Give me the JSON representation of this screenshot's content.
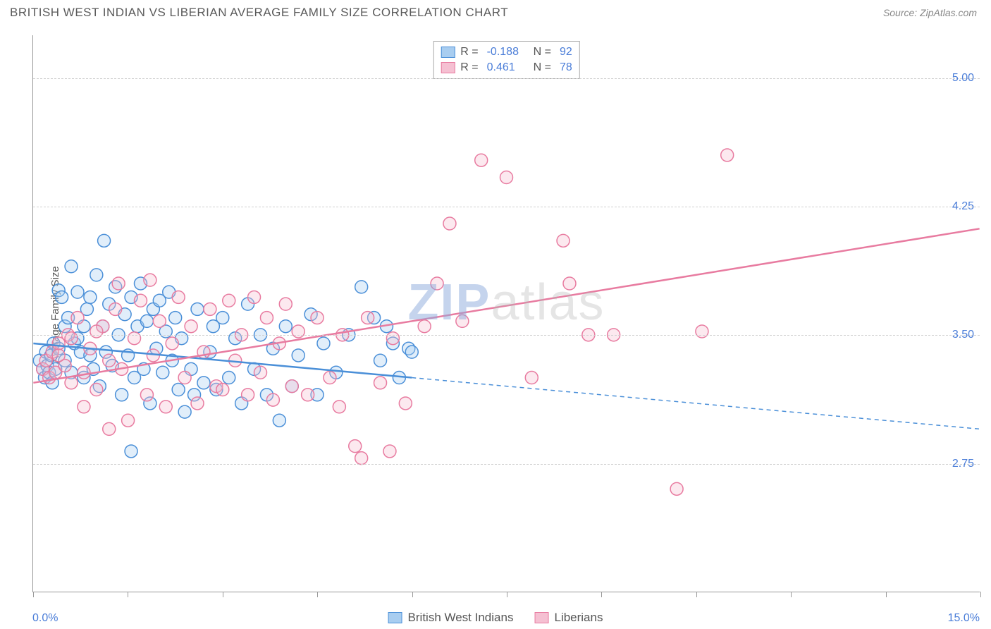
{
  "header": {
    "title": "BRITISH WEST INDIAN VS LIBERIAN AVERAGE FAMILY SIZE CORRELATION CHART",
    "source": "Source: ZipAtlas.com"
  },
  "chart": {
    "type": "scatter",
    "y_axis_title": "Average Family Size",
    "xlim": [
      0,
      15
    ],
    "ylim": [
      2.0,
      5.25
    ],
    "x_ticks": [
      0,
      1.5,
      3.0,
      4.5,
      6.0,
      7.5,
      9.0,
      10.5,
      12.0,
      13.5,
      15.0
    ],
    "x_min_label": "0.0%",
    "x_max_label": "15.0%",
    "y_gridlines": [
      2.75,
      3.5,
      4.25,
      5.0
    ],
    "y_tick_labels": [
      "2.75",
      "3.50",
      "4.25",
      "5.00"
    ],
    "grid_color": "#d0d0d0",
    "axis_color": "#999999",
    "tick_label_color": "#4a7dd8",
    "background_color": "#ffffff",
    "marker_radius": 9,
    "marker_stroke_width": 1.5,
    "marker_fill_opacity": 0.35,
    "line_width": 2.5,
    "series": [
      {
        "name": "British West Indians",
        "color_stroke": "#4a8fd8",
        "color_fill": "#a8cdf0",
        "R": "-0.188",
        "N": "92",
        "trend": {
          "x1": 0,
          "y1": 3.45,
          "x2": 15,
          "y2": 2.95,
          "solid_until_x": 6.0
        },
        "points": [
          [
            0.1,
            3.35
          ],
          [
            0.15,
            3.3
          ],
          [
            0.18,
            3.25
          ],
          [
            0.2,
            3.4
          ],
          [
            0.22,
            3.32
          ],
          [
            0.25,
            3.28
          ],
          [
            0.28,
            3.38
          ],
          [
            0.3,
            3.22
          ],
          [
            0.32,
            3.45
          ],
          [
            0.35,
            3.3
          ],
          [
            0.4,
            3.76
          ],
          [
            0.45,
            3.72
          ],
          [
            0.5,
            3.55
          ],
          [
            0.55,
            3.6
          ],
          [
            0.6,
            3.9
          ],
          [
            0.65,
            3.45
          ],
          [
            0.7,
            3.75
          ],
          [
            0.75,
            3.4
          ],
          [
            0.8,
            3.25
          ],
          [
            0.85,
            3.65
          ],
          [
            0.9,
            3.72
          ],
          [
            0.95,
            3.3
          ],
          [
            1.0,
            3.85
          ],
          [
            1.05,
            3.2
          ],
          [
            1.1,
            3.55
          ],
          [
            1.12,
            4.05
          ],
          [
            1.15,
            3.4
          ],
          [
            1.2,
            3.68
          ],
          [
            1.25,
            3.32
          ],
          [
            1.3,
            3.78
          ],
          [
            1.35,
            3.5
          ],
          [
            1.4,
            3.15
          ],
          [
            1.45,
            3.62
          ],
          [
            1.5,
            3.38
          ],
          [
            1.55,
            3.72
          ],
          [
            1.55,
            2.82
          ],
          [
            1.6,
            3.25
          ],
          [
            1.65,
            3.55
          ],
          [
            1.7,
            3.8
          ],
          [
            1.75,
            3.3
          ],
          [
            1.8,
            3.58
          ],
          [
            1.85,
            3.1
          ],
          [
            1.9,
            3.65
          ],
          [
            1.95,
            3.42
          ],
          [
            2.0,
            3.7
          ],
          [
            2.05,
            3.28
          ],
          [
            2.1,
            3.52
          ],
          [
            2.15,
            3.75
          ],
          [
            2.2,
            3.35
          ],
          [
            2.25,
            3.6
          ],
          [
            2.3,
            3.18
          ],
          [
            2.35,
            3.48
          ],
          [
            2.4,
            3.05
          ],
          [
            2.5,
            3.3
          ],
          [
            2.55,
            3.15
          ],
          [
            2.6,
            3.65
          ],
          [
            2.7,
            3.22
          ],
          [
            2.8,
            3.4
          ],
          [
            2.85,
            3.55
          ],
          [
            2.9,
            3.18
          ],
          [
            3.0,
            3.6
          ],
          [
            3.1,
            3.25
          ],
          [
            3.2,
            3.48
          ],
          [
            3.3,
            3.1
          ],
          [
            3.4,
            3.68
          ],
          [
            3.5,
            3.3
          ],
          [
            3.6,
            3.5
          ],
          [
            3.7,
            3.15
          ],
          [
            3.8,
            3.42
          ],
          [
            3.9,
            3.0
          ],
          [
            4.0,
            3.55
          ],
          [
            4.1,
            3.2
          ],
          [
            4.2,
            3.38
          ],
          [
            4.4,
            3.62
          ],
          [
            4.5,
            3.15
          ],
          [
            4.6,
            3.45
          ],
          [
            4.8,
            3.28
          ],
          [
            5.0,
            3.5
          ],
          [
            5.2,
            3.78
          ],
          [
            5.4,
            3.6
          ],
          [
            5.5,
            3.35
          ],
          [
            5.6,
            3.55
          ],
          [
            5.7,
            3.45
          ],
          [
            5.8,
            3.25
          ],
          [
            5.95,
            3.42
          ],
          [
            6.0,
            3.4
          ],
          [
            0.4,
            3.42
          ],
          [
            0.5,
            3.35
          ],
          [
            0.6,
            3.28
          ],
          [
            0.7,
            3.48
          ],
          [
            0.8,
            3.55
          ],
          [
            0.9,
            3.38
          ]
        ]
      },
      {
        "name": "Liberians",
        "color_stroke": "#e87ba0",
        "color_fill": "#f5c0d2",
        "R": "0.461",
        "N": "78",
        "trend": {
          "x1": 0,
          "y1": 3.22,
          "x2": 15,
          "y2": 4.12,
          "solid_until_x": 15
        },
        "points": [
          [
            0.15,
            3.3
          ],
          [
            0.2,
            3.35
          ],
          [
            0.25,
            3.25
          ],
          [
            0.3,
            3.4
          ],
          [
            0.35,
            3.28
          ],
          [
            0.4,
            3.45
          ],
          [
            0.5,
            3.32
          ],
          [
            0.55,
            3.5
          ],
          [
            0.6,
            3.22
          ],
          [
            0.7,
            3.6
          ],
          [
            0.8,
            3.08
          ],
          [
            0.9,
            3.42
          ],
          [
            1.0,
            3.18
          ],
          [
            1.1,
            3.55
          ],
          [
            1.2,
            2.95
          ],
          [
            1.3,
            3.65
          ],
          [
            1.35,
            3.8
          ],
          [
            1.4,
            3.3
          ],
          [
            1.5,
            3.0
          ],
          [
            1.6,
            3.48
          ],
          [
            1.7,
            3.7
          ],
          [
            1.85,
            3.82
          ],
          [
            1.8,
            3.15
          ],
          [
            1.9,
            3.38
          ],
          [
            2.0,
            3.58
          ],
          [
            2.1,
            3.08
          ],
          [
            2.2,
            3.45
          ],
          [
            2.3,
            3.72
          ],
          [
            2.4,
            3.25
          ],
          [
            2.5,
            3.55
          ],
          [
            2.6,
            3.1
          ],
          [
            2.7,
            3.4
          ],
          [
            2.8,
            3.65
          ],
          [
            2.9,
            3.2
          ],
          [
            3.0,
            3.18
          ],
          [
            3.1,
            3.7
          ],
          [
            3.2,
            3.35
          ],
          [
            3.3,
            3.5
          ],
          [
            3.4,
            3.15
          ],
          [
            3.5,
            3.72
          ],
          [
            3.6,
            3.28
          ],
          [
            3.7,
            3.6
          ],
          [
            3.8,
            3.12
          ],
          [
            3.9,
            3.45
          ],
          [
            4.0,
            3.68
          ],
          [
            4.1,
            3.2
          ],
          [
            4.2,
            3.52
          ],
          [
            4.35,
            3.15
          ],
          [
            4.5,
            3.6
          ],
          [
            4.7,
            3.25
          ],
          [
            4.85,
            3.08
          ],
          [
            4.9,
            3.5
          ],
          [
            5.1,
            2.85
          ],
          [
            5.2,
            2.78
          ],
          [
            5.3,
            3.6
          ],
          [
            5.5,
            3.22
          ],
          [
            5.65,
            2.82
          ],
          [
            5.7,
            3.48
          ],
          [
            5.9,
            3.1
          ],
          [
            6.2,
            3.55
          ],
          [
            6.4,
            3.8
          ],
          [
            6.6,
            4.15
          ],
          [
            6.8,
            3.58
          ],
          [
            7.1,
            4.52
          ],
          [
            7.5,
            4.42
          ],
          [
            7.9,
            3.25
          ],
          [
            8.4,
            4.05
          ],
          [
            8.5,
            3.8
          ],
          [
            8.8,
            3.5
          ],
          [
            9.2,
            3.5
          ],
          [
            10.2,
            2.6
          ],
          [
            10.6,
            3.52
          ],
          [
            11.0,
            4.55
          ],
          [
            0.4,
            3.38
          ],
          [
            0.6,
            3.48
          ],
          [
            0.8,
            3.28
          ],
          [
            1.0,
            3.52
          ],
          [
            1.2,
            3.35
          ]
        ]
      }
    ],
    "legend_bottom": [
      {
        "label": "British West Indians",
        "stroke": "#4a8fd8",
        "fill": "#a8cdf0"
      },
      {
        "label": "Liberians",
        "stroke": "#e87ba0",
        "fill": "#f5c0d2"
      }
    ],
    "watermark": {
      "prefix": "ZIP",
      "suffix": "atlas"
    }
  }
}
